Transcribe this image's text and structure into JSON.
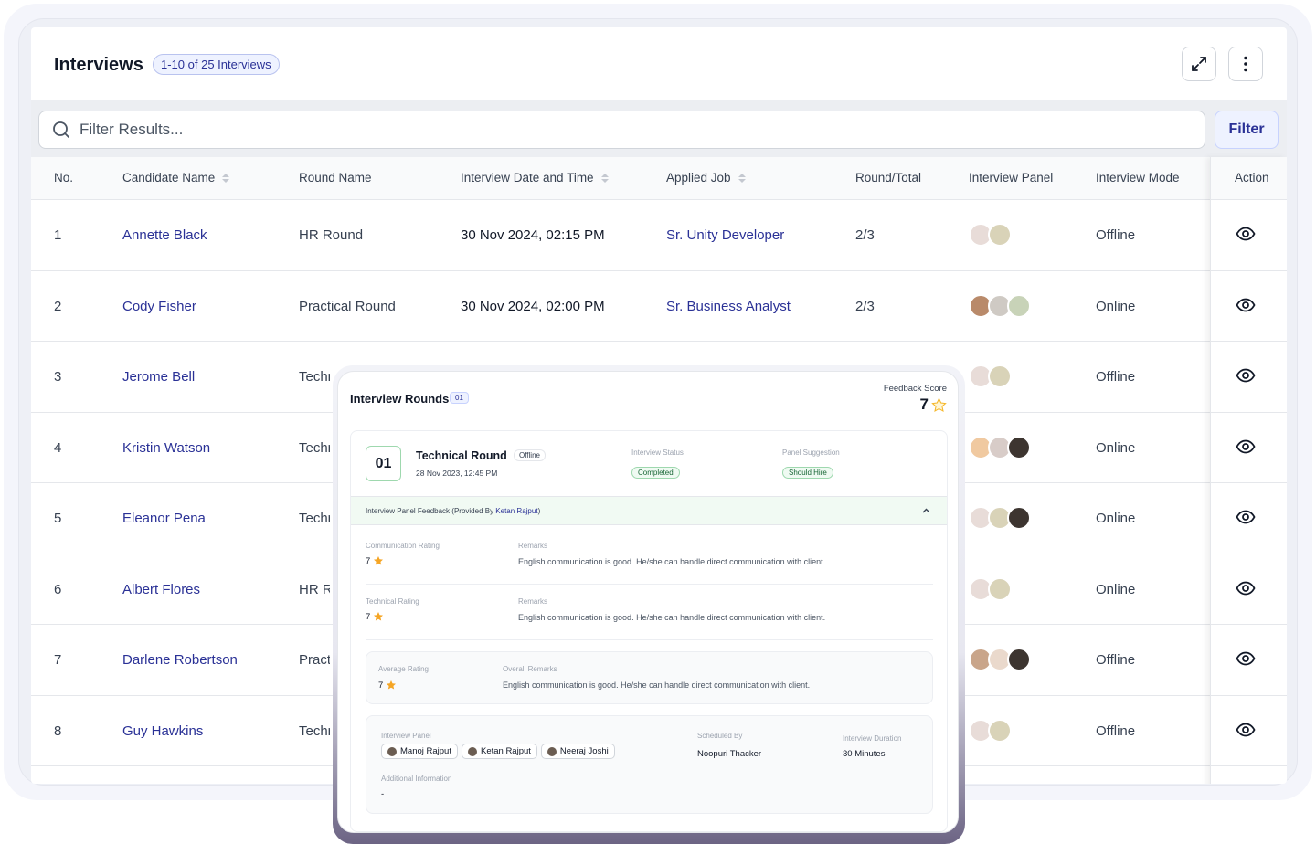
{
  "header": {
    "title": "Interviews",
    "count_badge": "1-10 of 25 Interviews"
  },
  "search": {
    "placeholder": "Filter Results...",
    "filter_label": "Filter"
  },
  "columns": [
    "No.",
    "Candidate Name",
    "Round Name",
    "Interview Date and Time",
    "Applied Job",
    "Round/Total",
    "Interview Panel",
    "Interview Mode",
    "Action"
  ],
  "rows": [
    {
      "no": "1",
      "name": "Annette Black",
      "round": "HR Round",
      "date": "30 Nov 2024, 02:15 PM",
      "job": "Sr. Unity Developer",
      "rt": "2/3",
      "panel": 2,
      "mode": "Offline"
    },
    {
      "no": "2",
      "name": "Cody Fisher",
      "round": "Practical Round",
      "date": "30 Nov 2024, 02:00 PM",
      "job": "Sr. Business Analyst",
      "rt": "2/3",
      "panel": 3,
      "mode": "Online"
    },
    {
      "no": "3",
      "name": "Jerome Bell",
      "round": "Technical Round",
      "panel": 2,
      "mode": "Offline"
    },
    {
      "no": "4",
      "name": "Kristin Watson",
      "round": "Technical Round",
      "panel": 3,
      "mode": "Online"
    },
    {
      "no": "5",
      "name": "Eleanor Pena",
      "round": "Technical Round",
      "panel": 3,
      "mode": "Online"
    },
    {
      "no": "6",
      "name": "Albert Flores",
      "round": "HR Round",
      "panel": 2,
      "mode": "Online"
    },
    {
      "no": "7",
      "name": "Darlene Robertson",
      "round": "Practical Round",
      "panel": 3,
      "mode": "Offline"
    },
    {
      "no": "8",
      "name": "Guy Hawkins",
      "round": "Technical Round",
      "panel": 2,
      "mode": "Offline"
    }
  ],
  "modal": {
    "title": "Interview Rounds",
    "count": "01",
    "feedback_score_label": "Feedback Score",
    "feedback_score": "7",
    "round": {
      "number": "01",
      "name": "Technical Round",
      "mode": "Offline",
      "datetime": "28 Nov 2023, 12:45 PM",
      "status_label": "Interview Status",
      "status": "Completed",
      "suggestion_label": "Panel Suggestion",
      "suggestion": "Should Hire"
    },
    "feedback_prefix": "Interview Panel Feedback (Provided By ",
    "feedback_by": "Ketan Rajput",
    "feedback_suffix": ")",
    "ratings": [
      {
        "label": "Communication Rating",
        "value": "7",
        "remarks_label": "Remarks",
        "remarks": "English communication is good. He/she can handle direct communication with client."
      },
      {
        "label": "Technical Rating",
        "value": "7",
        "remarks_label": "Remarks",
        "remarks": "English communication is good. He/she can handle direct communication with client."
      }
    ],
    "average": {
      "label": "Average Rating",
      "value": "7",
      "remarks_label": "Overall Remarks",
      "remarks": "English communication is good. He/she can handle direct communication with client."
    },
    "panel_label": "Interview Panel",
    "panel": [
      "Manoj Rajput",
      "Ketan Rajput",
      "Neeraj Joshi"
    ],
    "scheduled_label": "Scheduled By",
    "scheduled_by": "Noopuri Thacker",
    "duration_label": "Interview Duration",
    "duration": "30 Minutes",
    "additional_label": "Additional Information",
    "additional": "-"
  },
  "colors": {
    "accent": "#2a3196",
    "star": "#f5a524",
    "success": "#166534"
  }
}
